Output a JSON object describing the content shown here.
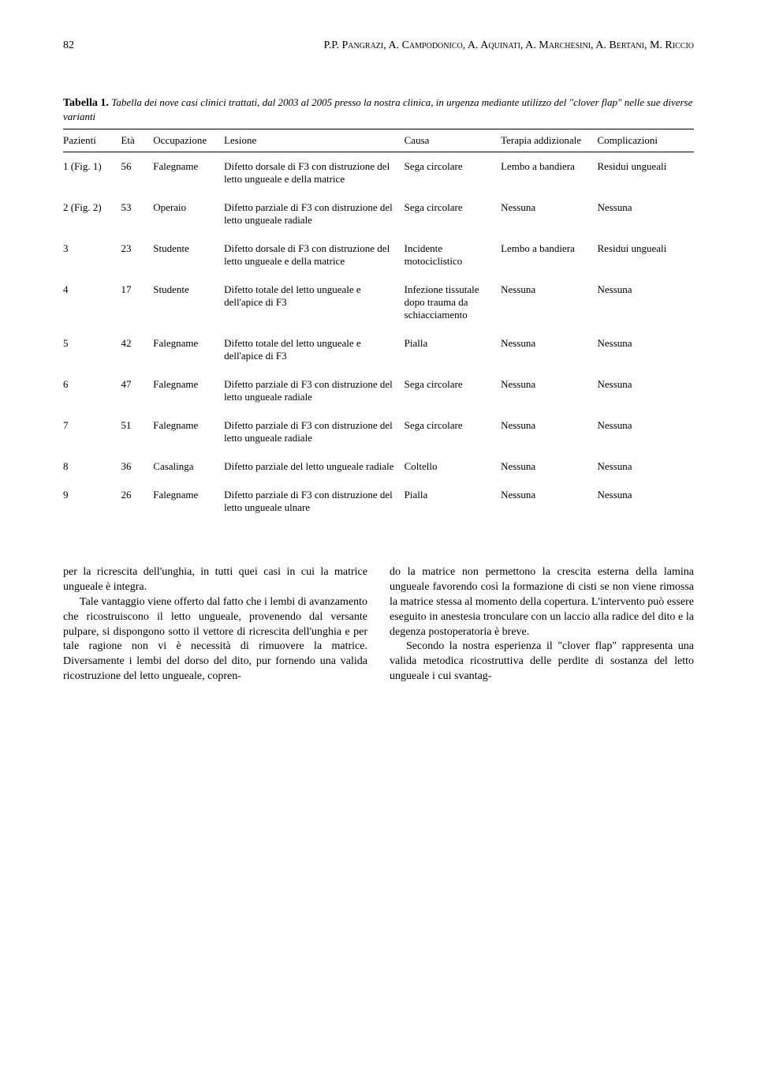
{
  "pageNumber": "82",
  "authors": "P.P. Pangrazi, A. Campodonico, A. Aquinati, A. Marchesini, A. Bertani, M. Riccio",
  "tableLabel": "Tabella 1.",
  "tableCaption": "Tabella dei nove casi clinici trattati, dal 2003 al 2005 presso la nostra clinica, in urgenza mediante utilizzo del \"clover flap\" nelle sue diverse varianti",
  "columns": {
    "pazienti": "Pazienti",
    "eta": "Età",
    "occupazione": "Occupazione",
    "lesione": "Lesione",
    "causa": "Causa",
    "terapia": "Terapia addizionale",
    "complicazioni": "Complicazioni"
  },
  "rows": [
    {
      "paz": "1 (Fig. 1)",
      "eta": "56",
      "occ": "Falegname",
      "les": "Difetto dorsale di F3 con distruzione del letto ungueale e della matrice",
      "causa": "Sega circolare",
      "ter": "Lembo a bandiera",
      "compl": "Residui ungueali"
    },
    {
      "paz": "2 (Fig. 2)",
      "eta": "53",
      "occ": "Operaio",
      "les": "Difetto parziale di F3 con distruzione del letto ungueale radiale",
      "causa": "Sega circolare",
      "ter": "Nessuna",
      "compl": "Nessuna"
    },
    {
      "paz": "3",
      "eta": "23",
      "occ": "Studente",
      "les": "Difetto dorsale di F3 con distruzione del letto ungueale e della matrice",
      "causa": "Incidente motociclistico",
      "ter": "Lembo a bandiera",
      "compl": "Residui ungueali"
    },
    {
      "paz": "4",
      "eta": "17",
      "occ": "Studente",
      "les": "Difetto totale del letto ungueale e dell'apice di F3",
      "causa": "Infezione tissutale dopo trauma da schiacciamento",
      "ter": "Nessuna",
      "compl": "Nessuna"
    },
    {
      "paz": "5",
      "eta": "42",
      "occ": "Falegname",
      "les": "Difetto totale del letto ungueale e dell'apice di F3",
      "causa": "Pialla",
      "ter": "Nessuna",
      "compl": "Nessuna"
    },
    {
      "paz": "6",
      "eta": "47",
      "occ": "Falegname",
      "les": "Difetto parziale di F3 con distruzione del letto ungueale radiale",
      "causa": "Sega circolare",
      "ter": "Nessuna",
      "compl": "Nessuna"
    },
    {
      "paz": "7",
      "eta": "51",
      "occ": "Falegname",
      "les": "Difetto parziale di F3 con distruzione del letto ungueale radiale",
      "causa": "Sega circolare",
      "ter": "Nessuna",
      "compl": "Nessuna"
    },
    {
      "paz": "8",
      "eta": "36",
      "occ": "Casalinga",
      "les": "Difetto parziale del letto ungueale radiale",
      "causa": "Coltello",
      "ter": "Nessuna",
      "compl": "Nessuna"
    },
    {
      "paz": "9",
      "eta": "26",
      "occ": "Falegname",
      "les": "Difetto parziale di F3 con distruzione del letto ungueale ulnare",
      "causa": "Pialla",
      "ter": "Nessuna",
      "compl": "Nessuna"
    }
  ],
  "body": {
    "leftP1": "per la ricrescita dell'unghia, in tutti quei casi in cui la matrice ungueale è integra.",
    "leftP2": "Tale vantaggio viene offerto dal fatto che i lembi di avanzamento che ricostruiscono il letto ungueale, provenendo dal versante pulpare, si dispongono sotto il vettore di ricrescita dell'unghia e per tale ragione non vi è necessità di rimuovere la matrice. Diversamente i lembi del dorso del dito, pur fornendo una valida ricostruzione del letto ungueale, copren-",
    "rightP1": "do la matrice non permettono la crescita esterna della lamina ungueale favorendo così la formazione di cisti se non viene rimossa la matrice stessa al momento della copertura. L'intervento può essere eseguito in anestesia tronculare con un laccio alla radice del dito e la degenza postoperatoria è breve.",
    "rightP2": "Secondo la nostra esperienza il \"clover flap\" rappresenta una valida metodica ricostruttiva delle perdite di sostanza del letto ungueale i cui svantag-"
  }
}
